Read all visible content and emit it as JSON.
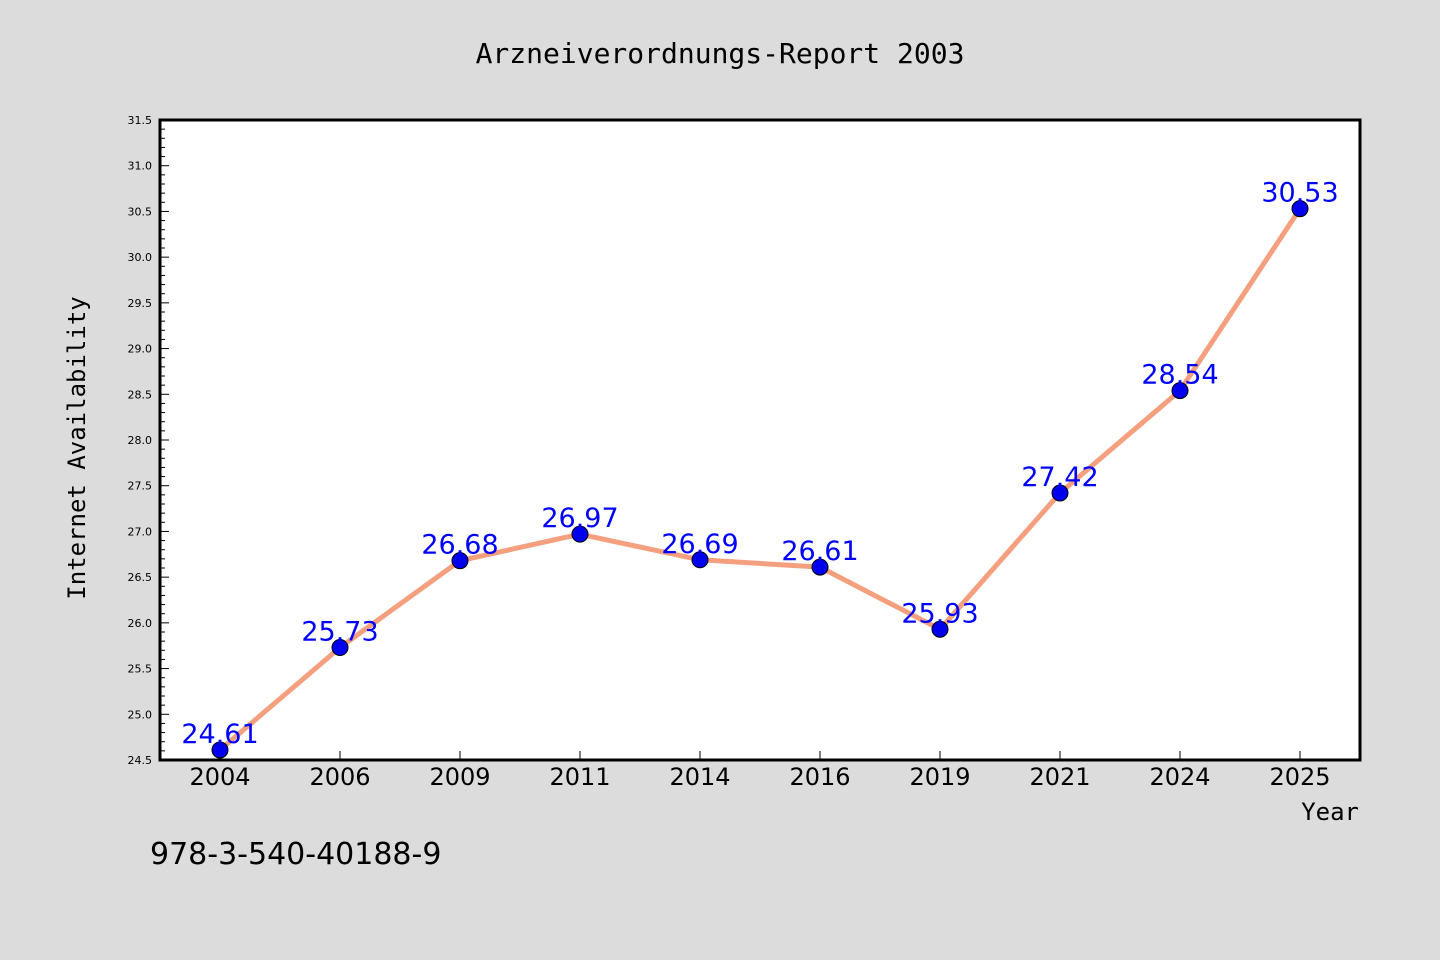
{
  "chart_data": {
    "type": "line",
    "title": "Arzneiverordnungs-Report 2003",
    "xlabel": "Year",
    "ylabel": "Internet Availability",
    "categories": [
      "2004",
      "2006",
      "2009",
      "2011",
      "2014",
      "2016",
      "2019",
      "2021",
      "2024",
      "2025"
    ],
    "series": [
      {
        "values": [
          24.61,
          25.73,
          26.68,
          26.97,
          26.69,
          26.61,
          25.93,
          27.42,
          28.54,
          30.53
        ]
      }
    ],
    "ylim": [
      24.5,
      31.5
    ],
    "yticks": [
      "24.5",
      "25.0",
      "25.5",
      "26.0",
      "26.5",
      "27.0",
      "27.5",
      "28.0",
      "28.5",
      "29.0",
      "29.5",
      "30.0",
      "30.5",
      "31.0",
      "31.5"
    ],
    "grid": false,
    "data_labels": true,
    "colors": {
      "line": "#f4a07e",
      "marker": "#0000ee",
      "label": "#0000ff",
      "figure_bg": "#dcdcdc",
      "plot_bg": "#ffffff"
    }
  },
  "footnote": "978-3-540-40188-9"
}
